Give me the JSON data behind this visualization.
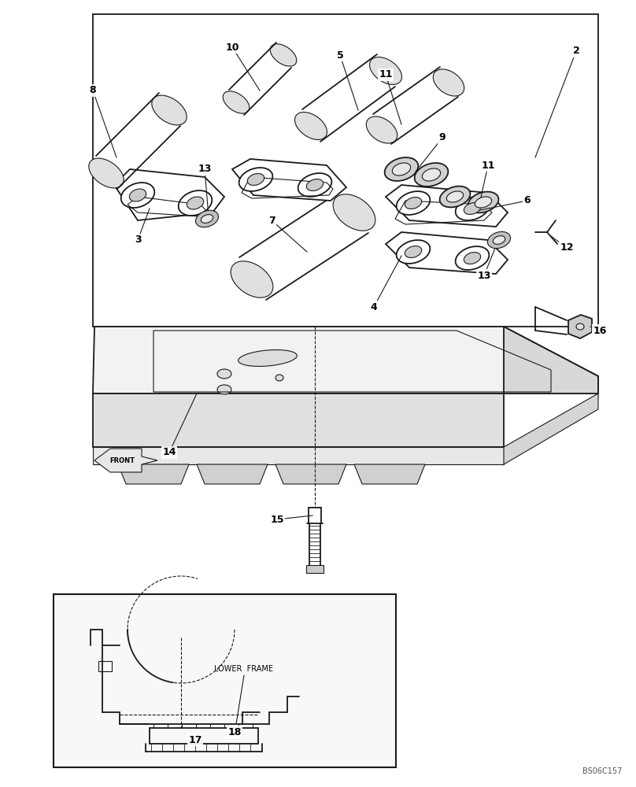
{
  "bg_color": "#ffffff",
  "line_color": "#1a1a1a",
  "fig_width": 8.08,
  "fig_height": 10.0,
  "dpi": 100,
  "watermark": "BS06C157"
}
